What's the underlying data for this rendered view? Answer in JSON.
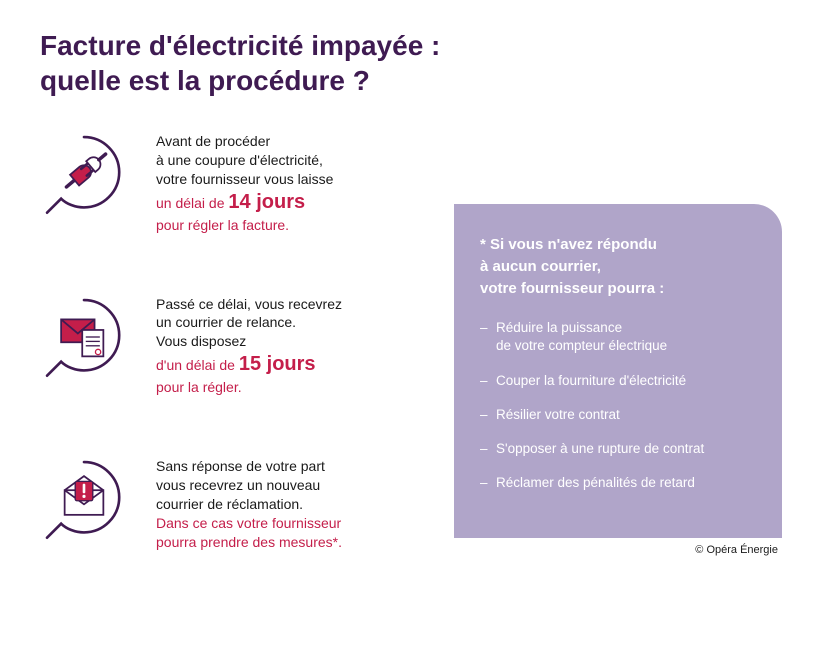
{
  "colors": {
    "title": "#3f1b52",
    "body_dark": "#1a1a1a",
    "accent": "#c41e4a",
    "panel_bg": "#b0a5c9",
    "panel_text": "#ffffff",
    "icon_stroke": "#3f1b52",
    "icon_fill": "#c41e4a"
  },
  "title": {
    "line1": "Facture d'électricité impayée :",
    "line2": "quelle est la procédure ?",
    "fontsize": 28,
    "weight": 700
  },
  "steps": [
    {
      "icon": "plug-icon",
      "text_dark": "Avant de procéder\nà une coupure d'électricité,\nvotre fournisseur vous laisse",
      "accent_pre": "un délai de ",
      "accent_big": "14 jours",
      "accent_line2": "pour régler la facture."
    },
    {
      "icon": "envelope-doc-icon",
      "text_dark": "Passé ce délai, vous recevrez\nun courrier de relance.\nVous disposez",
      "accent_pre": "d'un délai de ",
      "accent_big": "15 jours",
      "accent_line2": "pour la régler."
    },
    {
      "icon": "envelope-alert-icon",
      "text_dark": "Sans réponse de votre part\nvous recevrez un nouveau\ncourrier de réclamation.",
      "accent_pre": "",
      "accent_big": "",
      "accent_line2": "Dans ce cas votre fournisseur\npourra prendre des mesures*."
    }
  ],
  "panel": {
    "heading": "* Si vous n'avez répondu\nà aucun courrier,\nvotre fournisseur pourra :",
    "items": [
      "Réduire la puissance\nde votre compteur électrique",
      "Couper la fourniture d'électricité",
      "Résilier votre contrat",
      "S'opposer à une rupture de contrat",
      "Réclamer des pénalités de retard"
    ]
  },
  "credit": "© Opéra Énergie"
}
